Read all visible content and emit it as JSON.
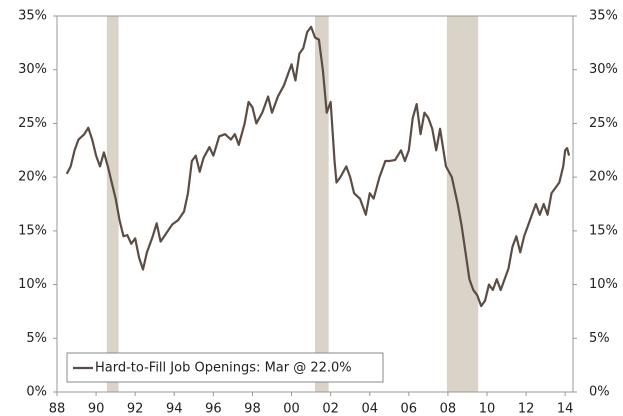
{
  "chart_data": {
    "type": "line",
    "x": [
      1988.5,
      1988.7,
      1988.9,
      1989.1,
      1989.4,
      1989.6,
      1989.8,
      1990.0,
      1990.2,
      1990.4,
      1990.6,
      1990.8,
      1991.0,
      1991.2,
      1991.4,
      1991.6,
      1991.8,
      1992.0,
      1992.2,
      1992.4,
      1992.6,
      1992.9,
      1993.1,
      1993.3,
      1993.6,
      1993.9,
      1994.2,
      1994.5,
      1994.7,
      1994.9,
      1995.1,
      1995.3,
      1995.5,
      1995.8,
      1996.0,
      1996.3,
      1996.6,
      1996.9,
      1997.1,
      1997.3,
      1997.6,
      1997.8,
      1998.0,
      1998.2,
      1998.5,
      1998.8,
      1999.0,
      1999.3,
      1999.6,
      1999.8,
      2000.0,
      2000.2,
      2000.4,
      2000.6,
      2000.8,
      2001.0,
      2001.2,
      2001.4,
      2001.6,
      2001.8,
      2002.0,
      2002.2,
      2002.3,
      2002.5,
      2002.8,
      2003.0,
      2003.2,
      2003.5,
      2003.8,
      2004.0,
      2004.2,
      2004.5,
      2004.8,
      2005.0,
      2005.3,
      2005.6,
      2005.8,
      2006.0,
      2006.2,
      2006.4,
      2006.6,
      2006.8,
      2007.0,
      2007.2,
      2007.4,
      2007.6,
      2007.9,
      2008.2,
      2008.5,
      2008.7,
      2008.9,
      2009.1,
      2009.3,
      2009.5,
      2009.7,
      2009.9,
      2010.1,
      2010.3,
      2010.5,
      2010.7,
      2010.9,
      2011.1,
      2011.3,
      2011.5,
      2011.7,
      2011.9,
      2012.1,
      2012.3,
      2012.5,
      2012.7,
      2012.9,
      2013.1,
      2013.3,
      2013.5,
      2013.7,
      2013.9,
      2014.0,
      2014.1,
      2014.2
    ],
    "series": [
      {
        "name": "Hard-to-Fill Job Openings: Mar @ 22.0%",
        "color": "#5b4c44",
        "values": [
          20.3,
          21,
          22.5,
          23.5,
          24.0,
          24.6,
          23.5,
          22.0,
          21.0,
          22.3,
          21.0,
          19.5,
          18,
          16,
          14.5,
          14.6,
          13.8,
          14.3,
          12.5,
          11.4,
          13.0,
          14.5,
          15.7,
          14.0,
          14.8,
          15.6,
          16.0,
          16.8,
          18.5,
          21.5,
          22.0,
          20.5,
          21.8,
          22.8,
          22.0,
          23.8,
          24.0,
          23.5,
          24.0,
          23.0,
          25.0,
          27.0,
          26.5,
          25.0,
          26.0,
          27.5,
          26.0,
          27.5,
          28.5,
          29.5,
          30.5,
          29.0,
          31.5,
          32.0,
          33.5,
          34.0,
          33.0,
          32.8,
          30.0,
          26.0,
          27.0,
          21.5,
          19.5,
          20.0,
          21.0,
          20.0,
          18.5,
          18.0,
          16.5,
          18.5,
          18.0,
          20.0,
          21.5,
          21.5,
          21.6,
          22.5,
          21.5,
          22.5,
          25.5,
          26.8,
          24.0,
          26.0,
          25.5,
          24.5,
          22.5,
          24.5,
          21.0,
          20.0,
          17.5,
          15.5,
          13.0,
          10.5,
          9.5,
          9.0,
          8.0,
          8.5,
          10.0,
          9.5,
          10.5,
          9.5,
          10.5,
          11.5,
          13.5,
          14.5,
          13.0,
          14.5,
          15.5,
          16.5,
          17.5,
          16.5,
          17.5,
          16.5,
          18.5,
          19.0,
          19.5,
          21.0,
          22.5,
          22.7,
          22.0
        ]
      }
    ],
    "shaded_regions": [
      [
        1990.55,
        1991.15
      ],
      [
        2001.2,
        2001.9
      ],
      [
        2007.95,
        2009.55
      ]
    ],
    "shaded_color": "#d9d4c7",
    "xlim": [
      1988,
      2014.4
    ],
    "xticks": [
      {
        "value": 1988,
        "label": "88"
      },
      {
        "value": 1990,
        "label": "90"
      },
      {
        "value": 1992,
        "label": "92"
      },
      {
        "value": 1994,
        "label": "94"
      },
      {
        "value": 1996,
        "label": "96"
      },
      {
        "value": 1998,
        "label": "98"
      },
      {
        "value": 2000,
        "label": "00"
      },
      {
        "value": 2002,
        "label": "02"
      },
      {
        "value": 2004,
        "label": "04"
      },
      {
        "value": 2006,
        "label": "06"
      },
      {
        "value": 2008,
        "label": "08"
      },
      {
        "value": 2010,
        "label": "10"
      },
      {
        "value": 2012,
        "label": "12"
      },
      {
        "value": 2014,
        "label": "14"
      }
    ],
    "ylim": [
      0,
      35
    ],
    "yticks": [
      {
        "value": 0,
        "label": "0%"
      },
      {
        "value": 5,
        "label": "5%"
      },
      {
        "value": 10,
        "label": "10%"
      },
      {
        "value": 15,
        "label": "15%"
      },
      {
        "value": 20,
        "label": "20%"
      },
      {
        "value": 25,
        "label": "25%"
      },
      {
        "value": 30,
        "label": "30%"
      },
      {
        "value": 35,
        "label": "35%"
      }
    ],
    "y2lim": [
      0,
      35
    ],
    "y2ticks": [
      {
        "value": 0,
        "label": "0%"
      },
      {
        "value": 5,
        "label": "5%"
      },
      {
        "value": 10,
        "label": "10%"
      },
      {
        "value": 15,
        "label": "15%"
      },
      {
        "value": 20,
        "label": "20%"
      },
      {
        "value": 25,
        "label": "25%"
      },
      {
        "value": 30,
        "label": "30%"
      },
      {
        "value": 35,
        "label": "35%"
      }
    ],
    "legend": "lower left"
  }
}
